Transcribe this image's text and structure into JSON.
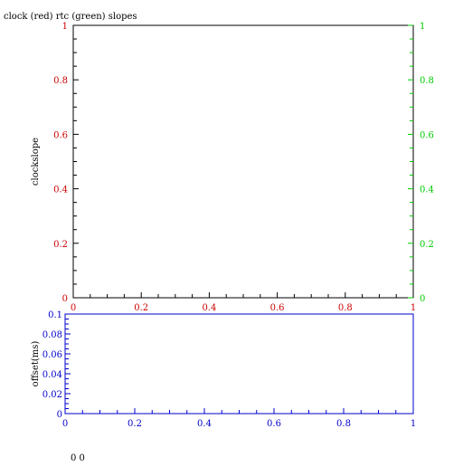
{
  "colors": {
    "axis": "#000000",
    "clock": "#cc0000",
    "rtc": "#00cc00",
    "offset": "#0000cc"
  },
  "status_text": "0 0",
  "chart_data": [
    {
      "type": "line",
      "title": "clock (red) rtc (green) slopes",
      "xlabel": "",
      "ylabel": "clockslope",
      "xlim": [
        0,
        1
      ],
      "ylim": [
        0,
        1
      ],
      "y2lim": [
        0,
        1
      ],
      "x_ticks": [
        "0",
        "0.2",
        "0.4",
        "0.6",
        "0.8",
        "1"
      ],
      "y_ticks": [
        "0",
        "0.2",
        "0.4",
        "0.6",
        "0.8",
        "1"
      ],
      "y2_ticks": [
        "0",
        "0.2",
        "0.4",
        "0.6",
        "0.8",
        "1"
      ],
      "grid": false,
      "series": []
    },
    {
      "type": "line",
      "title": "",
      "xlabel": "",
      "ylabel": "offset(ms)",
      "xlim": [
        0,
        1
      ],
      "ylim": [
        0,
        0.1
      ],
      "x_ticks": [
        "0",
        "0.2",
        "0.4",
        "0.6",
        "0.8",
        "1"
      ],
      "y_ticks": [
        "0",
        "0.02",
        "0.04",
        "0.06",
        "0.08",
        "0.1"
      ],
      "grid": false,
      "series": []
    }
  ]
}
